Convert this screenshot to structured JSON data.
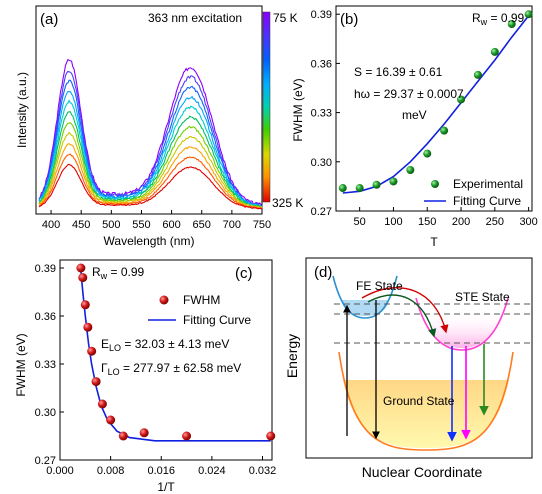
{
  "panels": {
    "a": {
      "label": "(a)",
      "excitation": "363 nm excitation",
      "color_top": "75 K",
      "color_bottom": "325 K"
    },
    "b": {
      "label": "(b)",
      "rw_main": "R",
      "rw_sub": "w",
      "rw_val": " = 0.99",
      "s_text": "S = 16.39 ± 0.61",
      "hw_text": "hω = 29.37 ± 0.0007",
      "hw_unit": "meV",
      "legend_points": "Experimental",
      "legend_line": "Fitting Curve"
    },
    "c": {
      "label": "(c)",
      "rw_main": "R",
      "rw_sub": "w",
      "rw_val": " = 0.99",
      "legend_points": "FWHM",
      "legend_line": "Fitting Curve",
      "e_main": "E",
      "e_sub": "LO",
      "e_val": " = 32.03 ± 4.13 meV",
      "g_main": "Γ",
      "g_sub": "LO",
      "g_val": " = 277.97 ± 62.58 meV"
    },
    "d": {
      "label": "(d)",
      "fe_state": "FE State",
      "ste_state": "STE State",
      "ground_state": "Ground State",
      "ylabel": "Energy",
      "xlabel": "Nuclear Coordinate"
    }
  },
  "chart_data": [
    {
      "id": "a",
      "type": "line",
      "xlabel": "Wavelength (nm)",
      "ylabel": "Intensity (a.u.)",
      "xlim": [
        375,
        750
      ],
      "xticks": [
        400,
        450,
        500,
        550,
        600,
        650,
        700,
        750
      ],
      "colorbar": {
        "top": "75 K",
        "bottom": "325 K",
        "colors": [
          "#8b00ff",
          "#5a2dff",
          "#0050ff",
          "#00a0ff",
          "#00d0d0",
          "#00c060",
          "#60d000",
          "#d0d000",
          "#ffa000",
          "#ff5000",
          "#e00000"
        ]
      },
      "series_scales": [
        1.0,
        0.93,
        0.86,
        0.79,
        0.72,
        0.65,
        0.58,
        0.51,
        0.44,
        0.37,
        0.3
      ],
      "series_colors": [
        "#8b00ff",
        "#4b3cff",
        "#1060ff",
        "#00a8ff",
        "#00cccc",
        "#00c060",
        "#70d000",
        "#c8c800",
        "#ffa000",
        "#ff5a00",
        "#e00000"
      ]
    },
    {
      "id": "b",
      "type": "scatter",
      "xlabel": "T",
      "ylabel": "FWHM (eV)",
      "xlim": [
        15,
        305
      ],
      "ylim": [
        0.27,
        0.395
      ],
      "xticks": [
        50,
        100,
        150,
        200,
        250,
        300
      ],
      "yticks": [
        0.27,
        0.3,
        0.33,
        0.36,
        0.39
      ],
      "points": {
        "x": [
          25,
          50,
          75,
          100,
          125,
          150,
          175,
          200,
          225,
          250,
          275,
          300
        ],
        "y": [
          0.284,
          0.284,
          0.286,
          0.288,
          0.295,
          0.305,
          0.319,
          0.338,
          0.353,
          0.367,
          0.384,
          0.39
        ]
      },
      "fit": {
        "x": [
          25,
          50,
          75,
          100,
          125,
          150,
          175,
          200,
          225,
          250,
          275,
          300
        ],
        "y": [
          0.281,
          0.282,
          0.285,
          0.291,
          0.3,
          0.311,
          0.323,
          0.336,
          0.349,
          0.362,
          0.376,
          0.389
        ]
      }
    },
    {
      "id": "c",
      "type": "scatter",
      "xlabel": "1/T",
      "ylabel": "FWHM (eV)",
      "xlim": [
        0,
        0.0335
      ],
      "ylim": [
        0.27,
        0.395
      ],
      "xticks": [
        0.0,
        0.008,
        0.016,
        0.024,
        0.032
      ],
      "xtick_labels": [
        "0.000",
        "0.008",
        "0.016",
        "0.024",
        "0.032"
      ],
      "yticks": [
        0.27,
        0.3,
        0.33,
        0.36,
        0.39
      ],
      "points": {
        "x": [
          0.0033,
          0.0036,
          0.004,
          0.0044,
          0.005,
          0.0057,
          0.0067,
          0.008,
          0.01,
          0.0133,
          0.02,
          0.0333
        ],
        "y": [
          0.39,
          0.384,
          0.367,
          0.353,
          0.338,
          0.319,
          0.305,
          0.295,
          0.285,
          0.287,
          0.285,
          0.285
        ]
      },
      "fit": {
        "x": [
          0.0032,
          0.0036,
          0.004,
          0.0045,
          0.005,
          0.0057,
          0.0065,
          0.0075,
          0.009,
          0.011,
          0.015,
          0.02,
          0.0333
        ],
        "y": [
          0.392,
          0.375,
          0.36,
          0.343,
          0.33,
          0.316,
          0.304,
          0.295,
          0.288,
          0.284,
          0.282,
          0.282,
          0.282
        ]
      }
    }
  ]
}
